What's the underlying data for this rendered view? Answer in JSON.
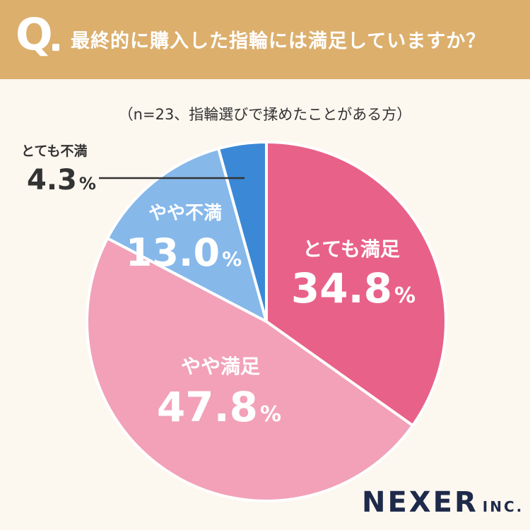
{
  "header": {
    "q_mark": "Q",
    "question": "最終的に購入した指輪には満足していますか？"
  },
  "subtitle": "（n=23、指輪選びで揉めたことがある方）",
  "colors": {
    "header_bg": "#dcaf6d",
    "very_satisfied": "#e86189",
    "somewhat_satisfied": "#f2a1b9",
    "somewhat_dissatisfied": "#86b8ea",
    "very_dissatisfied": "#3a88d6"
  },
  "chart_data": {
    "type": "pie",
    "unit": "%",
    "slices": [
      {
        "label": "とても満足",
        "value": 34.8,
        "value_text": "34.8",
        "color": "#e86189"
      },
      {
        "label": "やや満足",
        "value": 47.8,
        "value_text": "47.8",
        "color": "#f2a1b9"
      },
      {
        "label": "やや不満",
        "value": 13.0,
        "value_text": "13.0",
        "color": "#86b8ea"
      },
      {
        "label": "とても不満",
        "value": 4.3,
        "value_text": "4.3",
        "color": "#3a88d6"
      }
    ]
  },
  "logo": {
    "main": "NEXER",
    "sub": "INC."
  }
}
